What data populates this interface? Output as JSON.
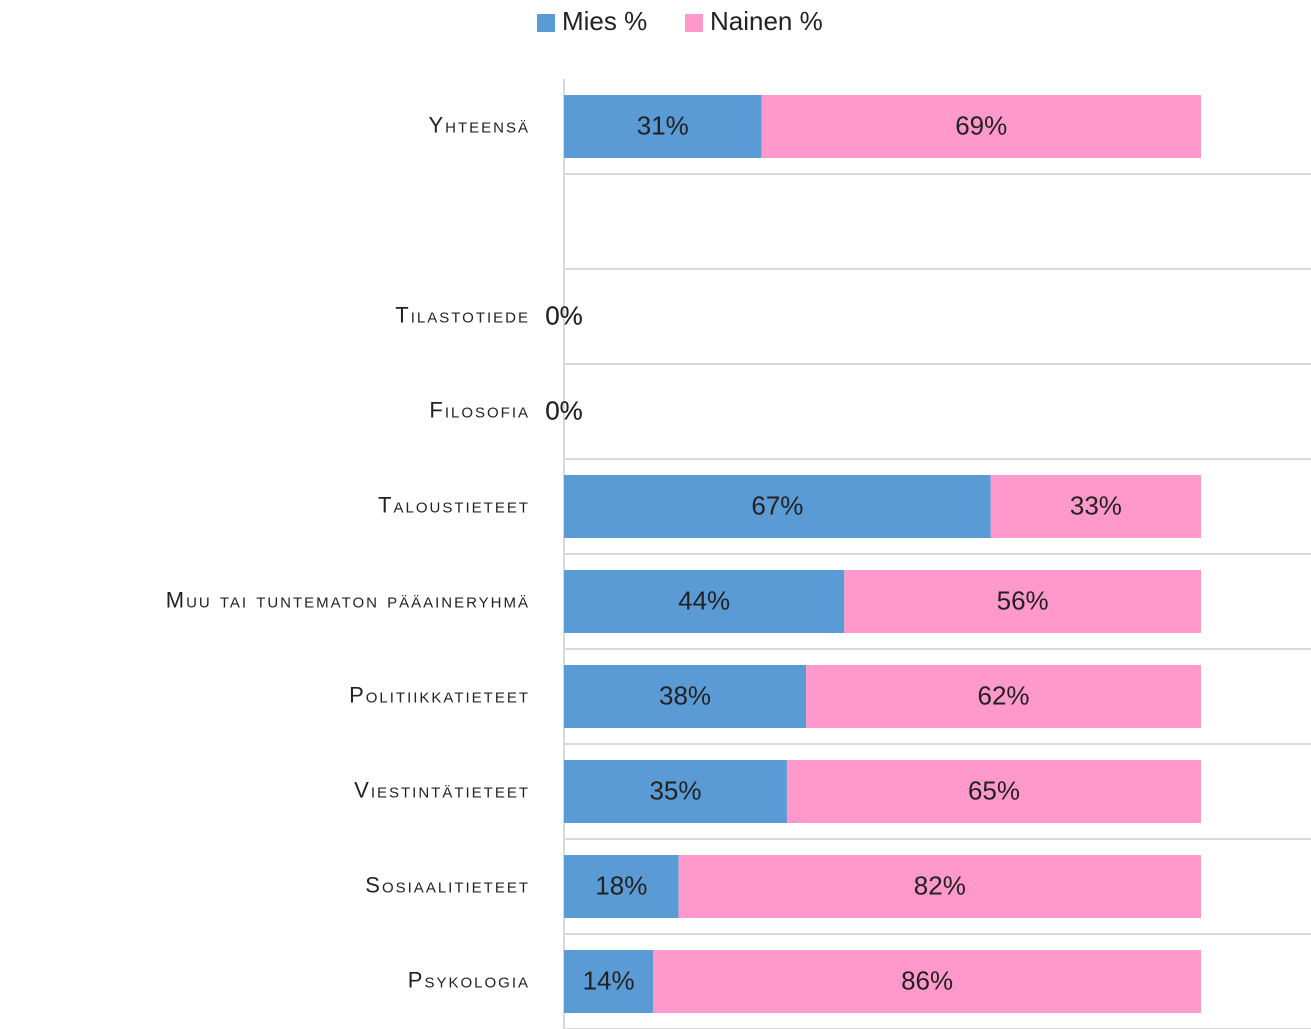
{
  "chart_data": {
    "type": "stacked-bar-horizontal",
    "categories": [
      "Yhteensä",
      null,
      "Tilastotiede",
      "Filosofia",
      "Taloustieteet",
      "Muu tai tuntematon pääaineryhmä",
      "Politiikkatieteet",
      "Viestintätieteet",
      "Sosiaalitieteet",
      "Psykologia"
    ],
    "series": [
      {
        "name": "Mies %",
        "color": "#5b9bd5",
        "values": [
          31,
          null,
          0,
          0,
          67,
          44,
          38,
          35,
          18,
          14
        ],
        "value_labels": [
          "31%",
          null,
          "0%",
          "0%",
          "67%",
          "44%",
          "38%",
          "35%",
          "18%",
          "14%"
        ]
      },
      {
        "name": "Nainen %",
        "color": "#ff99cc",
        "values": [
          69,
          null,
          0,
          0,
          33,
          56,
          62,
          65,
          82,
          86
        ],
        "value_labels": [
          "69%",
          null,
          "0%",
          "0%",
          "33%",
          "56%",
          "62%",
          "65%",
          "82%",
          "86%"
        ]
      }
    ],
    "xlim": [
      0,
      100
    ],
    "legend": "top"
  }
}
